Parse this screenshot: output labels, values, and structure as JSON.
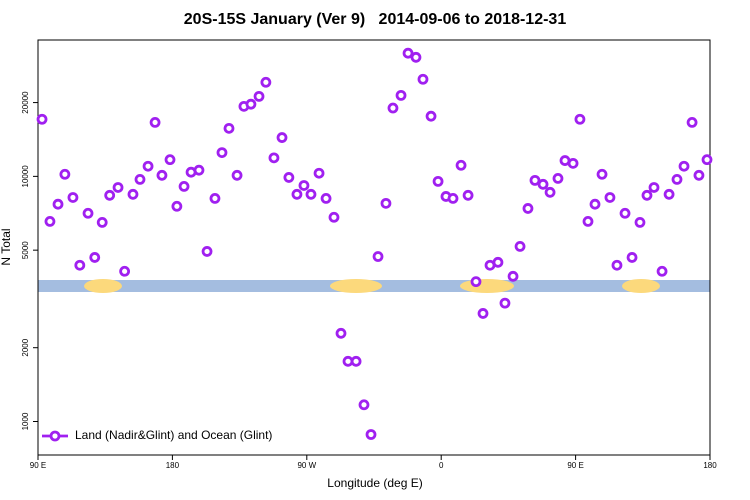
{
  "chart_data": {
    "type": "scatter",
    "title": "20S-15S January (Ver 9)   2014-09-06 to 2018-12-31",
    "x_label": "Longitude (deg E)",
    "y_label": "N Total",
    "ylog": true,
    "legend": "bottom-left",
    "xlim": [
      90,
      540
    ],
    "ylim": [
      730,
      36000
    ],
    "xticks": [
      {
        "value": 90,
        "label": "90 E"
      },
      180,
      {
        "value": 270,
        "label": "90 W"
      },
      {
        "value": 360,
        "label": "0"
      },
      {
        "value": 450,
        "label": "90 E"
      },
      {
        "value": 540,
        "label": "180"
      }
    ],
    "yticks": [
      1000,
      2000,
      5000,
      10000,
      20000
    ],
    "series": [
      {
        "name": "Land (Nadir&Glint) and Ocean (Glint)",
        "color": "#a020f0",
        "x": [
          92.7,
          98,
          103.4,
          108,
          113.4,
          118,
          123.5,
          128,
          133,
          138,
          143.6,
          148,
          153.6,
          158.3,
          163.7,
          168.4,
          173,
          178.4,
          183,
          187.8,
          192.5,
          197.8,
          203.2,
          208.5,
          213.2,
          217.9,
          223.3,
          227.9,
          232.6,
          238,
          242.6,
          248,
          253.4,
          258,
          263.4,
          268.1,
          272.8,
          278.2,
          282.9,
          288.2,
          292.9,
          297.6,
          303,
          308.3,
          313,
          317.7,
          323,
          327.7,
          333.1,
          337.8,
          343.1,
          347.8,
          353.2,
          357.9,
          363.2,
          367.9,
          373.3,
          378,
          383.3,
          388,
          392.7,
          398,
          402.7,
          408.1,
          412.8,
          418.1,
          422.8,
          428.2,
          432.9,
          438.2,
          442.9,
          448.3,
          452.9,
          458.3,
          463,
          467.7,
          473,
          477.7,
          483.1,
          487.8,
          493.1,
          497.8,
          502.5,
          507.9,
          512.6,
          517.9,
          522.6,
          528,
          532.6,
          538
        ],
        "values": [
          17100,
          6550,
          7700,
          10200,
          8200,
          4340,
          7070,
          4670,
          6490,
          8370,
          9010,
          4100,
          8450,
          9720,
          11000,
          16600,
          10100,
          11700,
          7550,
          9100,
          10400,
          10600,
          4940,
          8130,
          12500,
          15700,
          10100,
          19300,
          19700,
          21200,
          24200,
          11900,
          14400,
          9900,
          8450,
          9180,
          8450,
          10300,
          8130,
          6810,
          2290,
          1760,
          1760,
          1170,
          885,
          4710,
          7760,
          19000,
          21400,
          31800,
          30600,
          24900,
          17600,
          9540,
          8280,
          8130,
          11100,
          8370,
          3720,
          2760,
          4340,
          4460,
          3040,
          3910,
          5180,
          7400,
          9630,
          9280,
          8610,
          9810,
          11600,
          11300,
          17100,
          6550,
          7700,
          10200,
          8200,
          4340,
          7070,
          4670,
          6490,
          8370,
          9010,
          4100,
          8450,
          9720,
          11000,
          16600,
          10100,
          11700
        ]
      }
    ]
  }
}
